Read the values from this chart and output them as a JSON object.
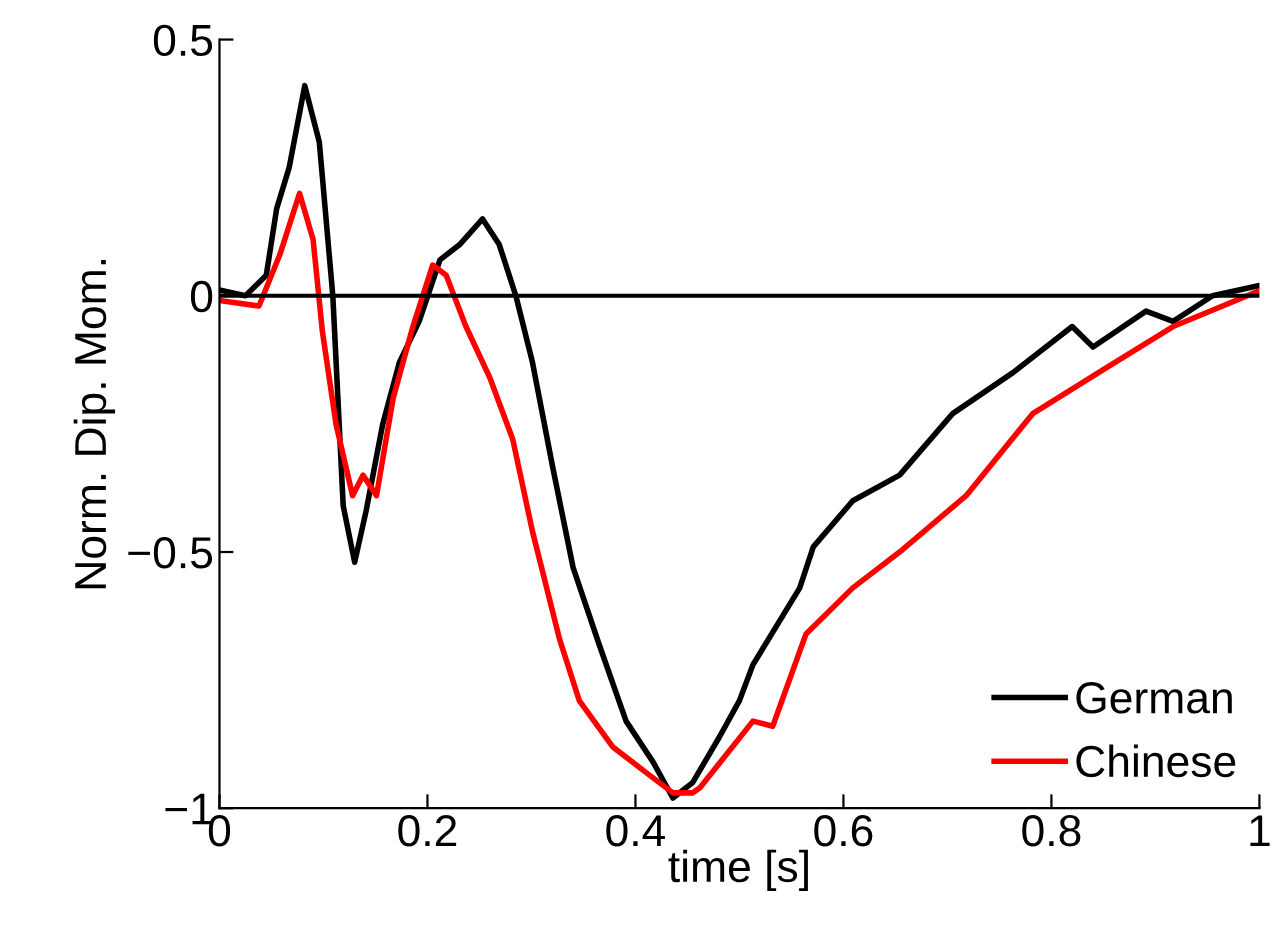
{
  "chart_data": {
    "type": "line",
    "xlabel": "time [s]",
    "ylabel": "Norm. Dip. Mom.",
    "xlim": [
      0,
      1
    ],
    "ylim": [
      -1,
      0.5
    ],
    "xticks": [
      0,
      0.2,
      0.4,
      0.6,
      0.8,
      1
    ],
    "yticks": [
      -1,
      -0.5,
      0,
      0.5
    ],
    "grid": false,
    "legend": "bottom right",
    "line_style": "solid",
    "marker": "none",
    "ref_lines": [
      {
        "axis": "y",
        "value": 0,
        "color": "#000000"
      }
    ],
    "series": [
      {
        "name": "German",
        "color": "#000000",
        "x": [
          0.003,
          0.025,
          0.045,
          0.055,
          0.067,
          0.082,
          0.096,
          0.109,
          0.119,
          0.13,
          0.141,
          0.157,
          0.173,
          0.192,
          0.212,
          0.231,
          0.253,
          0.269,
          0.285,
          0.301,
          0.32,
          0.34,
          0.365,
          0.391,
          0.417,
          0.436,
          0.455,
          0.481,
          0.5,
          0.513,
          0.558,
          0.571,
          0.609,
          0.654,
          0.705,
          0.763,
          0.82,
          0.84,
          0.891,
          0.917,
          0.955,
          1.0
        ],
        "values": [
          0.01,
          0.0,
          0.04,
          0.17,
          0.25,
          0.41,
          0.3,
          0.0,
          -0.41,
          -0.52,
          -0.42,
          -0.25,
          -0.13,
          -0.05,
          0.07,
          0.1,
          0.15,
          0.1,
          0.0,
          -0.13,
          -0.33,
          -0.53,
          -0.68,
          -0.83,
          -0.91,
          -0.98,
          -0.95,
          -0.86,
          -0.79,
          -0.72,
          -0.57,
          -0.49,
          -0.4,
          -0.35,
          -0.23,
          -0.15,
          -0.06,
          -0.1,
          -0.03,
          -0.05,
          0.0,
          0.02
        ]
      },
      {
        "name": "Chinese",
        "color": "#ff0000",
        "x": [
          0.003,
          0.038,
          0.058,
          0.077,
          0.09,
          0.099,
          0.112,
          0.128,
          0.138,
          0.151,
          0.167,
          0.186,
          0.205,
          0.218,
          0.237,
          0.26,
          0.282,
          0.301,
          0.327,
          0.346,
          0.378,
          0.41,
          0.436,
          0.455,
          0.462,
          0.513,
          0.532,
          0.564,
          0.609,
          0.654,
          0.718,
          0.782,
          0.853,
          0.917,
          1.0
        ],
        "values": [
          -0.01,
          -0.02,
          0.08,
          0.2,
          0.11,
          -0.07,
          -0.25,
          -0.39,
          -0.35,
          -0.39,
          -0.2,
          -0.06,
          0.06,
          0.04,
          -0.06,
          -0.16,
          -0.28,
          -0.46,
          -0.67,
          -0.79,
          -0.88,
          -0.93,
          -0.97,
          -0.97,
          -0.96,
          -0.83,
          -0.84,
          -0.66,
          -0.57,
          -0.5,
          -0.39,
          -0.23,
          -0.14,
          -0.06,
          0.01
        ]
      }
    ]
  }
}
